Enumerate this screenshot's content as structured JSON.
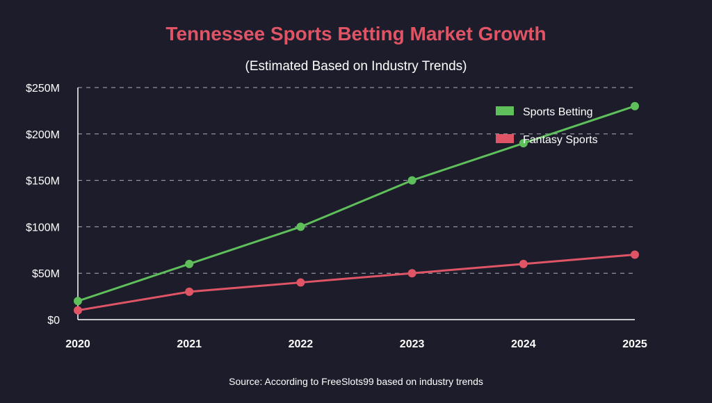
{
  "colors": {
    "background": "#1c1c2b",
    "title": "#e05566",
    "text": "#ffffff",
    "grid": "#c8c8d0",
    "axis": "#ffffff",
    "series_sports": "#5fbf5a",
    "series_fantasy": "#e05566"
  },
  "chart_data": {
    "type": "line",
    "title": "Tennessee Sports Betting Market Growth",
    "subtitle": "(Estimated Based on Industry Trends)",
    "xlabel": "",
    "ylabel": "",
    "x": [
      2020,
      2021,
      2022,
      2023,
      2024,
      2025
    ],
    "x_tick_labels": [
      "2020",
      "2021",
      "2022",
      "2023",
      "2024",
      "2025"
    ],
    "y_ticks": [
      0,
      50,
      100,
      150,
      200,
      250
    ],
    "y_tick_labels": [
      "$0",
      "$50M",
      "$100M",
      "$150M",
      "$200M",
      "$250M"
    ],
    "ylim": [
      0,
      250
    ],
    "grid": "horizontal dashed",
    "legend_position": "top-right",
    "series": [
      {
        "name": "Sports Betting",
        "values": [
          20,
          60,
          100,
          150,
          190,
          230
        ]
      },
      {
        "name": "Fantasy Sports",
        "values": [
          10,
          30,
          40,
          50,
          60,
          70
        ]
      }
    ],
    "source": "Source: According to FreeSlots99 based on industry trends"
  }
}
